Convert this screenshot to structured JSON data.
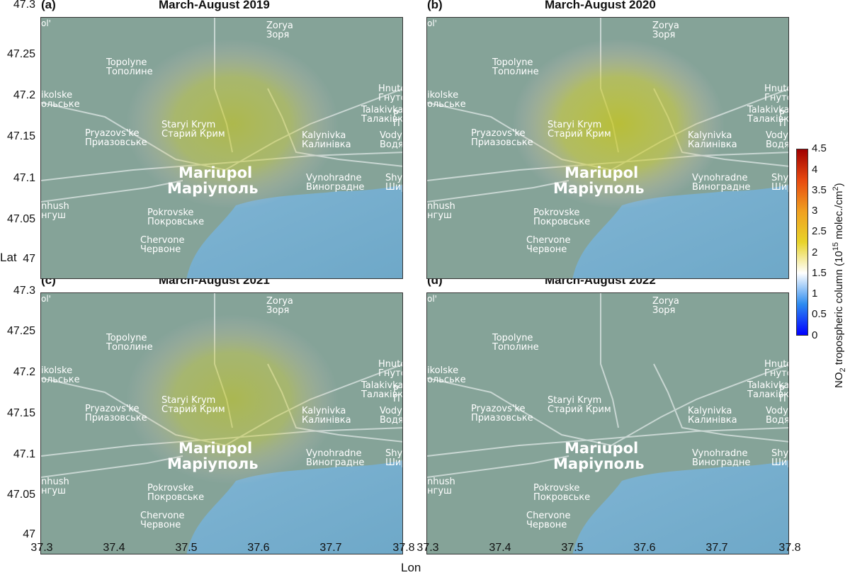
{
  "panels": [
    {
      "label": "(a)",
      "title": "March-August 2019",
      "no2_level": 0.75
    },
    {
      "label": "(b)",
      "title": "March-August 2020",
      "no2_level": 0.95
    },
    {
      "label": "(c)",
      "title": "March-August 2021",
      "no2_level": 0.7
    },
    {
      "label": "(d)",
      "title": "March-August 2022",
      "no2_level": 0.0
    }
  ],
  "axes": {
    "xlabel": "Lon",
    "ylabel": "Lat",
    "xticks": [
      "37.3",
      "37.4",
      "37.5",
      "37.6",
      "37.7",
      "37.8"
    ],
    "yticks": [
      "47.3",
      "47.25",
      "47.2",
      "47.15",
      "47.1",
      "47.05",
      "47"
    ],
    "xlim": [
      37.3,
      37.8
    ],
    "ylim": [
      47.0,
      47.3
    ]
  },
  "map_labels": {
    "zorya": [
      "Zorya",
      "Зоря"
    ],
    "topolyne": [
      "Topolyne",
      "Тополине"
    ],
    "nikolske": [
      "ikolske",
      "ольське"
    ],
    "hnutove": [
      "Hnutove",
      "Гнутове"
    ],
    "talakivka": [
      "Talakivka",
      "Талаківка"
    ],
    "staryi": [
      "Staryi Krym",
      "Старий Крим"
    ],
    "pryazovske": [
      "Pryazovs'ke",
      "Приазовське"
    ],
    "kalynivka": [
      "Kalynivka",
      "Калинівка"
    ],
    "vodyane": [
      "Vodya",
      "Водян"
    ],
    "mariupol": [
      "Mariupol",
      "Маріуполь"
    ],
    "vynohradne": [
      "Vynohradne",
      "Виноградне"
    ],
    "shy": [
      "Shy",
      "Шир"
    ],
    "manhush": [
      "nhush",
      "нгуш"
    ],
    "pokrovske": [
      "Pokrovske",
      "Покровське"
    ],
    "chervone": [
      "Chervone",
      "Червоне"
    ],
    "p_right": [
      "P",
      "П"
    ],
    "corner": [
      "ol'"
    ]
  },
  "colorbar": {
    "label": "NO2 tropospheric column (10^15 molec./cm^2)",
    "label_main": "NO",
    "label_sub": "2",
    "label_mid": " tropospheric column (10",
    "label_sup": "15",
    "label_end": " molec./cm",
    "label_sup2": "2",
    "label_close": ")",
    "ticks": [
      "4.5",
      "4",
      "3.5",
      "3",
      "2.5",
      "2",
      "1.5",
      "1",
      "0.5",
      "0"
    ],
    "range": [
      0,
      4.5
    ],
    "colors": [
      "#0000ff",
      "#2e8cf0",
      "#ffffff",
      "#e8d32a",
      "#f0a020",
      "#e84a10",
      "#a00000"
    ]
  }
}
